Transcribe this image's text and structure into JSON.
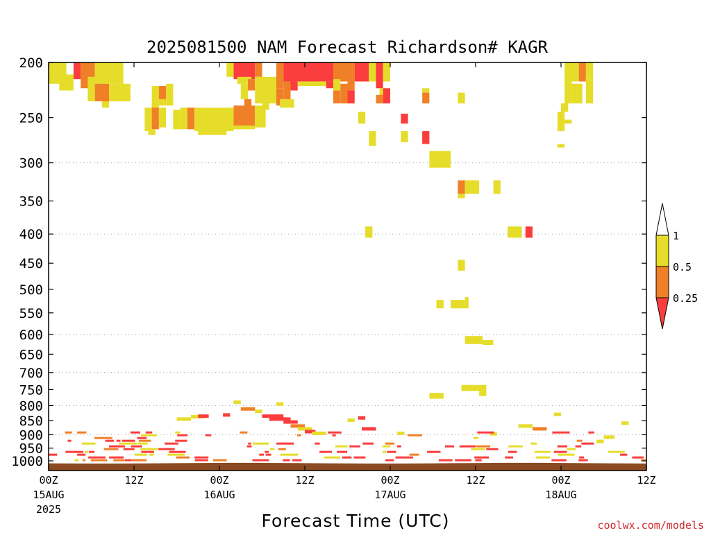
{
  "chart_data": {
    "type": "heatmap",
    "title": "2025081500 NAM Forecast Richardson# KAGR",
    "xlabel": "Forecast Time (UTC)",
    "ylabel": "",
    "credit": "coolwx.com/models",
    "x_unit": "forecast hour",
    "x_range": [
      0,
      84
    ],
    "y_unit": "hPa",
    "y_range": [
      200,
      1040
    ],
    "y_scale": "log",
    "y_ticks": [
      200,
      250,
      300,
      350,
      400,
      450,
      500,
      550,
      600,
      650,
      700,
      750,
      800,
      850,
      900,
      950,
      1000
    ],
    "y_gridlines": [
      300,
      400,
      600,
      700,
      800,
      900
    ],
    "grid": true,
    "x_ticks": [
      {
        "hour": 0,
        "label": "00Z",
        "date": "15AUG",
        "year": "2025"
      },
      {
        "hour": 12,
        "label": "12Z",
        "date": "",
        "year": ""
      },
      {
        "hour": 24,
        "label": "00Z",
        "date": "16AUG",
        "year": ""
      },
      {
        "hour": 36,
        "label": "12Z",
        "date": "",
        "year": ""
      },
      {
        "hour": 48,
        "label": "00Z",
        "date": "17AUG",
        "year": ""
      },
      {
        "hour": 60,
        "label": "12Z",
        "date": "",
        "year": ""
      },
      {
        "hour": 72,
        "label": "00Z",
        "date": "18AUG",
        "year": ""
      },
      {
        "hour": 84,
        "label": "12Z",
        "date": "",
        "year": ""
      }
    ],
    "legend": {
      "placement": "right",
      "levels": [
        "1",
        "0.5",
        "0.25"
      ],
      "bins": [
        {
          "name": "above 1",
          "color": "#ffffff"
        },
        {
          "name": "0.5 to 1",
          "color": "#e5dd2a"
        },
        {
          "name": "0.25 to 0.5",
          "color": "#f08028"
        },
        {
          "name": "below 0.25",
          "color": "#fb3d3d"
        }
      ]
    },
    "colors": {
      "yellow": "#e5dd2a",
      "orange": "#f08028",
      "red": "#fb3d3d",
      "ground": "#8b4a22"
    },
    "ground_pressure": [
      1010,
      1011,
      1011,
      1010,
      1009,
      1008,
      1008,
      1009,
      1010,
      1011,
      1011,
      1010,
      1009,
      1008,
      1008,
      1009,
      1010,
      1011
    ],
    "cells": [
      {
        "c": "y",
        "h0": 0,
        "h1": 2.5,
        "p0": 200,
        "p1": 218
      },
      {
        "c": "y",
        "h0": 1.5,
        "h1": 3.5,
        "p0": 210,
        "p1": 224
      },
      {
        "c": "r",
        "h0": 3.5,
        "h1": 4.5,
        "p0": 200,
        "p1": 214
      },
      {
        "c": "o",
        "h0": 4.5,
        "h1": 6.5,
        "p0": 200,
        "p1": 222
      },
      {
        "c": "y",
        "h0": 6.5,
        "h1": 10.5,
        "p0": 200,
        "p1": 218
      },
      {
        "c": "y",
        "h0": 5.5,
        "h1": 6.5,
        "p0": 212,
        "p1": 226
      },
      {
        "c": "o",
        "h0": 6.5,
        "h1": 8.5,
        "p0": 218,
        "p1": 234
      },
      {
        "c": "y",
        "h0": 8.5,
        "h1": 11.5,
        "p0": 218,
        "p1": 234
      },
      {
        "c": "y",
        "h0": 5.5,
        "h1": 6.5,
        "p0": 226,
        "p1": 234
      },
      {
        "c": "y",
        "h0": 7.5,
        "h1": 8.5,
        "p0": 234,
        "p1": 240
      },
      {
        "c": "y",
        "h0": 14.5,
        "h1": 15.5,
        "p0": 220,
        "p1": 240
      },
      {
        "c": "o",
        "h0": 15.5,
        "h1": 16.5,
        "p0": 220,
        "p1": 232
      },
      {
        "c": "y",
        "h0": 16.5,
        "h1": 17.5,
        "p0": 218,
        "p1": 238
      },
      {
        "c": "y",
        "h0": 15.5,
        "h1": 17.5,
        "p0": 232,
        "p1": 238
      },
      {
        "c": "y",
        "h0": 13.5,
        "h1": 14.5,
        "p0": 240,
        "p1": 260
      },
      {
        "c": "o",
        "h0": 14.5,
        "h1": 15.5,
        "p0": 240,
        "p1": 262
      },
      {
        "c": "y",
        "h0": 15.5,
        "h1": 16.5,
        "p0": 240,
        "p1": 260
      },
      {
        "c": "y",
        "h0": 17.5,
        "h1": 18.5,
        "p0": 242,
        "p1": 262
      },
      {
        "c": "y",
        "h0": 13.5,
        "h1": 14.5,
        "p0": 260,
        "p1": 264
      },
      {
        "c": "y",
        "h0": 14,
        "h1": 15,
        "p0": 262,
        "p1": 268
      },
      {
        "c": "y",
        "h0": 18.5,
        "h1": 19.5,
        "p0": 240,
        "p1": 262
      },
      {
        "c": "o",
        "h0": 19.5,
        "h1": 20.5,
        "p0": 240,
        "p1": 262
      },
      {
        "c": "y",
        "h0": 20.5,
        "h1": 26,
        "p0": 240,
        "p1": 264
      },
      {
        "c": "y",
        "h0": 21,
        "h1": 25,
        "p0": 262,
        "p1": 268
      },
      {
        "c": "o",
        "h0": 26,
        "h1": 29,
        "p0": 238,
        "p1": 260
      },
      {
        "c": "y",
        "h0": 29,
        "h1": 30.5,
        "p0": 238,
        "p1": 260
      },
      {
        "c": "y",
        "h0": 26,
        "h1": 29,
        "p0": 258,
        "p1": 262
      },
      {
        "c": "y",
        "h0": 25,
        "h1": 26,
        "p0": 200,
        "p1": 212
      },
      {
        "c": "r",
        "h0": 26,
        "h1": 29,
        "p0": 200,
        "p1": 214
      },
      {
        "c": "o",
        "h0": 29,
        "h1": 30,
        "p0": 200,
        "p1": 212
      },
      {
        "c": "y",
        "h0": 26.5,
        "h1": 28.5,
        "p0": 212,
        "p1": 218
      },
      {
        "c": "y",
        "h0": 27,
        "h1": 28,
        "p0": 218,
        "p1": 232
      },
      {
        "c": "o",
        "h0": 28,
        "h1": 29,
        "p0": 214,
        "p1": 224
      },
      {
        "c": "y",
        "h0": 29,
        "h1": 32,
        "p0": 212,
        "p1": 236
      },
      {
        "c": "y",
        "h0": 30,
        "h1": 31,
        "p0": 236,
        "p1": 242
      },
      {
        "c": "o",
        "h0": 27.5,
        "h1": 28.5,
        "p0": 232,
        "p1": 240
      },
      {
        "c": "o",
        "h0": 32,
        "h1": 33,
        "p0": 200,
        "p1": 222
      },
      {
        "c": "y",
        "h0": 33,
        "h1": 34,
        "p0": 200,
        "p1": 214
      },
      {
        "c": "r",
        "h0": 33,
        "h1": 40,
        "p0": 200,
        "p1": 216
      },
      {
        "c": "o",
        "h0": 32,
        "h1": 33,
        "p0": 222,
        "p1": 238
      },
      {
        "c": "o",
        "h0": 33,
        "h1": 34,
        "p0": 216,
        "p1": 232
      },
      {
        "c": "y",
        "h0": 32.5,
        "h1": 34.5,
        "p0": 232,
        "p1": 240
      },
      {
        "c": "r",
        "h0": 34,
        "h1": 35,
        "p0": 216,
        "p1": 224
      },
      {
        "c": "y",
        "h0": 35,
        "h1": 40,
        "p0": 216,
        "p1": 220
      },
      {
        "c": "r",
        "h0": 39,
        "h1": 40,
        "p0": 216,
        "p1": 222
      },
      {
        "c": "o",
        "h0": 40,
        "h1": 42,
        "p0": 200,
        "p1": 216
      },
      {
        "c": "o",
        "h0": 42,
        "h1": 43,
        "p0": 200,
        "p1": 224
      },
      {
        "c": "r",
        "h0": 43,
        "h1": 45,
        "p0": 200,
        "p1": 216
      },
      {
        "c": "y",
        "h0": 45,
        "h1": 46,
        "p0": 200,
        "p1": 216
      },
      {
        "c": "r",
        "h0": 46,
        "h1": 47,
        "p0": 200,
        "p1": 222
      },
      {
        "c": "y",
        "h0": 47,
        "h1": 48,
        "p0": 200,
        "p1": 216
      },
      {
        "c": "y",
        "h0": 40,
        "h1": 41,
        "p0": 214,
        "p1": 224
      },
      {
        "c": "o",
        "h0": 41,
        "h1": 42,
        "p0": 218,
        "p1": 236
      },
      {
        "c": "r",
        "h0": 42,
        "h1": 43,
        "p0": 224,
        "p1": 236
      },
      {
        "c": "o",
        "h0": 40,
        "h1": 41,
        "p0": 224,
        "p1": 236
      },
      {
        "c": "y",
        "h0": 46.5,
        "h1": 47.5,
        "p0": 222,
        "p1": 228
      },
      {
        "c": "o",
        "h0": 46,
        "h1": 47,
        "p0": 228,
        "p1": 236
      },
      {
        "c": "r",
        "h0": 47,
        "h1": 48,
        "p0": 222,
        "p1": 236
      },
      {
        "c": "y",
        "h0": 43.5,
        "h1": 44.5,
        "p0": 244,
        "p1": 256
      },
      {
        "c": "y",
        "h0": 45,
        "h1": 46,
        "p0": 264,
        "p1": 280
      },
      {
        "c": "r",
        "h0": 49.5,
        "h1": 50.5,
        "p0": 246,
        "p1": 256
      },
      {
        "c": "y",
        "h0": 49.5,
        "h1": 50.5,
        "p0": 264,
        "p1": 276
      },
      {
        "c": "y",
        "h0": 52.5,
        "h1": 53.5,
        "p0": 222,
        "p1": 226
      },
      {
        "c": "o",
        "h0": 52.5,
        "h1": 53.5,
        "p0": 226,
        "p1": 236
      },
      {
        "c": "r",
        "h0": 52.5,
        "h1": 53.5,
        "p0": 264,
        "p1": 278
      },
      {
        "c": "y",
        "h0": 57.5,
        "h1": 58.5,
        "p0": 226,
        "p1": 236
      },
      {
        "c": "y",
        "h0": 53.5,
        "h1": 56.5,
        "p0": 286,
        "p1": 306
      },
      {
        "c": "o",
        "h0": 57.5,
        "h1": 58.5,
        "p0": 322,
        "p1": 340
      },
      {
        "c": "y",
        "h0": 58.5,
        "h1": 60.5,
        "p0": 322,
        "p1": 340
      },
      {
        "c": "y",
        "h0": 57.5,
        "h1": 58.5,
        "p0": 340,
        "p1": 346
      },
      {
        "c": "y",
        "h0": 62.5,
        "h1": 63.5,
        "p0": 322,
        "p1": 340
      },
      {
        "c": "y",
        "h0": 44.5,
        "h1": 45.5,
        "p0": 388,
        "p1": 406
      },
      {
        "c": "y",
        "h0": 64.5,
        "h1": 66.5,
        "p0": 388,
        "p1": 406
      },
      {
        "c": "r",
        "h0": 67,
        "h1": 68,
        "p0": 388,
        "p1": 406
      },
      {
        "c": "y",
        "h0": 57.5,
        "h1": 58.5,
        "p0": 444,
        "p1": 464
      },
      {
        "c": "y",
        "h0": 54.5,
        "h1": 55.5,
        "p0": 522,
        "p1": 540
      },
      {
        "c": "y",
        "h0": 56.5,
        "h1": 58.5,
        "p0": 522,
        "p1": 540
      },
      {
        "c": "y",
        "h0": 58.5,
        "h1": 59,
        "p0": 516,
        "p1": 540
      },
      {
        "c": "y",
        "h0": 58.5,
        "h1": 61,
        "p0": 604,
        "p1": 624
      },
      {
        "c": "y",
        "h0": 61,
        "h1": 62.5,
        "p0": 614,
        "p1": 626
      },
      {
        "c": "y",
        "h0": 58,
        "h1": 61.5,
        "p0": 736,
        "p1": 754
      },
      {
        "c": "y",
        "h0": 60.5,
        "h1": 61.5,
        "p0": 754,
        "p1": 770
      },
      {
        "c": "y",
        "h0": 53.5,
        "h1": 55.5,
        "p0": 760,
        "p1": 778
      },
      {
        "c": "y",
        "h0": 72.5,
        "h1": 74.5,
        "p0": 200,
        "p1": 216
      },
      {
        "c": "o",
        "h0": 74.5,
        "h1": 75.5,
        "p0": 200,
        "p1": 216
      },
      {
        "c": "y",
        "h0": 75.5,
        "h1": 76.5,
        "p0": 200,
        "p1": 214
      },
      {
        "c": "y",
        "h0": 72.5,
        "h1": 73.5,
        "p0": 214,
        "p1": 236
      },
      {
        "c": "y",
        "h0": 73.5,
        "h1": 75,
        "p0": 218,
        "p1": 236
      },
      {
        "c": "y",
        "h0": 75.5,
        "h1": 76.5,
        "p0": 214,
        "p1": 236
      },
      {
        "c": "y",
        "h0": 72,
        "h1": 73,
        "p0": 236,
        "p1": 244
      },
      {
        "c": "y",
        "h0": 71.5,
        "h1": 72.5,
        "p0": 244,
        "p1": 264
      },
      {
        "c": "y",
        "h0": 72.5,
        "h1": 73.5,
        "p0": 252,
        "p1": 256
      },
      {
        "c": "y",
        "h0": 71.5,
        "h1": 72.5,
        "p0": 278,
        "p1": 282
      }
    ],
    "boundary_layer_segments": [
      {
        "c": "y",
        "h0": 26,
        "h1": 27,
        "p": 790
      },
      {
        "c": "y",
        "h0": 32,
        "h1": 33,
        "p": 796
      },
      {
        "c": "y",
        "h0": 71,
        "h1": 72,
        "p": 830
      },
      {
        "c": "y",
        "h0": 80.5,
        "h1": 81.5,
        "p": 860
      },
      {
        "c": "y",
        "h0": 18,
        "h1": 20,
        "p": 846
      },
      {
        "c": "y",
        "h0": 20,
        "h1": 22,
        "p": 838
      },
      {
        "c": "r",
        "h0": 21,
        "h1": 22.5,
        "p": 836
      },
      {
        "c": "r",
        "h0": 24.5,
        "h1": 25.5,
        "p": 832
      },
      {
        "c": "o",
        "h0": 27,
        "h1": 29,
        "p": 812
      },
      {
        "c": "y",
        "h0": 29,
        "h1": 30,
        "p": 820
      },
      {
        "c": "r",
        "h0": 30,
        "h1": 33,
        "p": 836
      },
      {
        "c": "r",
        "h0": 31,
        "h1": 34,
        "p": 846
      },
      {
        "c": "r",
        "h0": 33,
        "h1": 35,
        "p": 856
      },
      {
        "c": "o",
        "h0": 34,
        "h1": 36,
        "p": 870
      },
      {
        "c": "y",
        "h0": 35,
        "h1": 37,
        "p": 880
      },
      {
        "c": "r",
        "h0": 36,
        "h1": 37.5,
        "p": 890
      },
      {
        "c": "y",
        "h0": 37,
        "h1": 39,
        "p": 896
      },
      {
        "c": "y",
        "h0": 42,
        "h1": 43,
        "p": 850
      },
      {
        "c": "r",
        "h0": 43.5,
        "h1": 44.5,
        "p": 842
      },
      {
        "c": "r",
        "h0": 44,
        "h1": 46,
        "p": 880
      },
      {
        "c": "y",
        "h0": 49,
        "h1": 50,
        "p": 896
      },
      {
        "c": "y",
        "h0": 62,
        "h1": 63,
        "p": 898
      },
      {
        "c": "y",
        "h0": 66,
        "h1": 68,
        "p": 870
      },
      {
        "c": "o",
        "h0": 68,
        "h1": 70,
        "p": 880
      },
      {
        "c": "y",
        "h0": 78,
        "h1": 79.5,
        "p": 910
      },
      {
        "c": "y",
        "h0": 77,
        "h1": 78,
        "p": 926
      }
    ],
    "near_surface": {
      "p_top": 888,
      "p_bottom": 1008,
      "colors": [
        "r",
        "r",
        "o",
        "y",
        "r",
        "o",
        "r",
        "y",
        "r",
        "r"
      ],
      "density": [
        0.3,
        0.6,
        0.7,
        0.5,
        0.8,
        0.85,
        0.9,
        0.7,
        0.5,
        0.45,
        0.3,
        0.25,
        0.2,
        0.4,
        0.55,
        0.6,
        0.45,
        0.3,
        0.2,
        0.35,
        0.5,
        0.4,
        0.3,
        0.2,
        0.3,
        0.4,
        0.3,
        0.2,
        0.15,
        0.3,
        0.55,
        0.5,
        0.25,
        0.2,
        0.15,
        0.25,
        0.45,
        0.6,
        0.45,
        0.2,
        0.2,
        0.35,
        0.45,
        0.35
      ]
    }
  }
}
